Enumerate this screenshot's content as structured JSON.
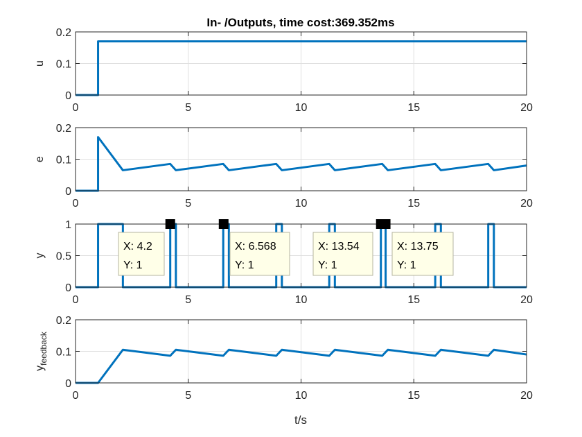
{
  "title": "In- /Outputs, time cost:369.352ms",
  "xlabel": "t/s",
  "line_color": "#0072BD",
  "chart_data": [
    {
      "type": "line",
      "ylabel": "u",
      "xlim": [
        0,
        20
      ],
      "ylim": [
        0,
        0.2
      ],
      "xticks": [
        0,
        5,
        10,
        15,
        20
      ],
      "yticks": [
        0,
        0.1,
        0.2
      ],
      "grid": true,
      "series": [
        {
          "x": [
            0,
            1,
            1,
            20
          ],
          "y": [
            0,
            0,
            0.17,
            0.17
          ]
        }
      ]
    },
    {
      "type": "line",
      "ylabel": "e",
      "xlim": [
        0,
        20
      ],
      "ylim": [
        0,
        0.2
      ],
      "xticks": [
        0,
        5,
        10,
        15,
        20
      ],
      "yticks": [
        0,
        0.1,
        0.2
      ],
      "grid": true,
      "series": [
        {
          "x": [
            0,
            1,
            1,
            2.1,
            4.2,
            4.45,
            6.55,
            6.8,
            8.9,
            9.15,
            11.25,
            11.5,
            13.6,
            13.85,
            15.95,
            16.2,
            18.3,
            18.55,
            20
          ],
          "y": [
            0,
            0,
            0.17,
            0.065,
            0.085,
            0.065,
            0.085,
            0.065,
            0.085,
            0.065,
            0.085,
            0.065,
            0.085,
            0.065,
            0.085,
            0.065,
            0.085,
            0.065,
            0.08
          ]
        }
      ]
    },
    {
      "type": "line",
      "ylabel": "y",
      "xlim": [
        0,
        20
      ],
      "ylim": [
        0,
        1
      ],
      "xticks": [
        0,
        5,
        10,
        15,
        20
      ],
      "yticks": [
        0,
        0.5,
        1
      ],
      "grid": true,
      "series": [
        {
          "x": [
            0,
            1,
            1,
            2.1,
            2.1,
            4.2,
            4.2,
            4.45,
            4.45,
            6.55,
            6.55,
            6.8,
            6.8,
            8.9,
            8.9,
            9.15,
            9.15,
            11.25,
            11.25,
            11.5,
            11.5,
            13.54,
            13.54,
            13.75,
            13.75,
            15.95,
            15.95,
            16.2,
            16.2,
            18.3,
            18.3,
            18.55,
            18.55,
            20
          ],
          "y": [
            0,
            0,
            1,
            1,
            0,
            0,
            1,
            1,
            0,
            0,
            1,
            1,
            0,
            0,
            1,
            1,
            0,
            0,
            1,
            1,
            0,
            0,
            1,
            1,
            0,
            0,
            1,
            1,
            0,
            0,
            1,
            1,
            0,
            0
          ]
        }
      ],
      "datatips": [
        {
          "x": 4.2,
          "y": 1,
          "x_text": "X: 4.2",
          "y_text": "Y: 1"
        },
        {
          "x": 6.568,
          "y": 1,
          "x_text": "X: 6.568",
          "y_text": "Y: 1"
        },
        {
          "x": 13.54,
          "y": 1,
          "x_text": "X: 13.54",
          "y_text": "Y: 1"
        },
        {
          "x": 13.75,
          "y": 1,
          "x_text": "X: 13.75",
          "y_text": "Y: 1"
        }
      ]
    },
    {
      "type": "line",
      "ylabel": "y",
      "ylabel_sub": "feedback",
      "xlim": [
        0,
        20
      ],
      "ylim": [
        0,
        0.2
      ],
      "xticks": [
        0,
        5,
        10,
        15,
        20
      ],
      "yticks": [
        0,
        0.1,
        0.2
      ],
      "grid": true,
      "series": [
        {
          "x": [
            0,
            1,
            2.1,
            4.2,
            4.45,
            6.55,
            6.8,
            8.9,
            9.15,
            11.25,
            11.5,
            13.6,
            13.85,
            15.95,
            16.2,
            18.3,
            18.55,
            20
          ],
          "y": [
            0,
            0,
            0.105,
            0.086,
            0.105,
            0.086,
            0.105,
            0.086,
            0.105,
            0.086,
            0.105,
            0.086,
            0.105,
            0.086,
            0.105,
            0.086,
            0.105,
            0.09
          ]
        }
      ]
    }
  ]
}
